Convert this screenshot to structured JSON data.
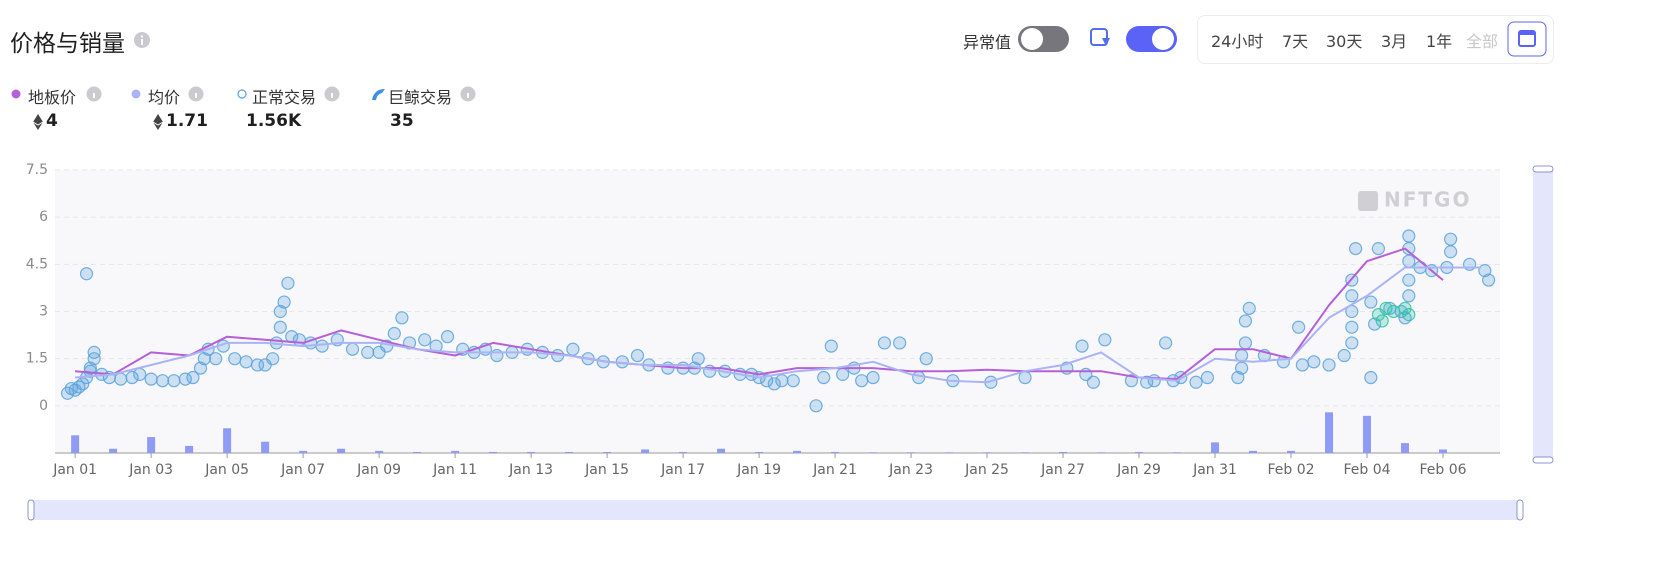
{
  "header": {
    "title": "价格与销量",
    "outlier_toggle": "异常值",
    "time_ranges": [
      "24小时",
      "7天",
      "30天",
      "3月",
      "1年",
      "全部"
    ]
  },
  "watermark": "NFTGO",
  "chart_data": {
    "type": "line",
    "xlim": [
      -0.53,
      37.5
    ],
    "xticks": [
      {
        "value": 0,
        "label": "Jan 01"
      },
      {
        "value": 2,
        "label": "Jan 03"
      },
      {
        "value": 4,
        "label": "Jan 05"
      },
      {
        "value": 6,
        "label": "Jan 07"
      },
      {
        "value": 8,
        "label": "Jan 09"
      },
      {
        "value": 10,
        "label": "Jan 11"
      },
      {
        "value": 12,
        "label": "Jan 13"
      },
      {
        "value": 14,
        "label": "Jan 15"
      },
      {
        "value": 16,
        "label": "Jan 17"
      },
      {
        "value": 18,
        "label": "Jan 19"
      },
      {
        "value": 20,
        "label": "Jan 21"
      },
      {
        "value": 22,
        "label": "Jan 23"
      },
      {
        "value": 24,
        "label": "Jan 25"
      },
      {
        "value": 26,
        "label": "Jan 27"
      },
      {
        "value": 28,
        "label": "Jan 29"
      },
      {
        "value": 30,
        "label": "Jan 31"
      },
      {
        "value": 32,
        "label": "Feb 02"
      },
      {
        "value": 34,
        "label": "Feb 04"
      },
      {
        "value": 36,
        "label": "Feb 06"
      }
    ],
    "ylim": [
      -1.5,
      7.5
    ],
    "yticks": [
      0,
      1.5,
      3,
      4.5,
      6,
      7.5
    ],
    "y2lim": [
      0,
      80
    ],
    "grid": true,
    "series": [
      {
        "name": "地板价",
        "type": "line",
        "color": "#b560d6",
        "summary": 4,
        "x": [
          0,
          1,
          2,
          3,
          4,
          5,
          6,
          7,
          8,
          9,
          10,
          11,
          12,
          13,
          14,
          15,
          16,
          17,
          18,
          19,
          20,
          21,
          22,
          23,
          24,
          25,
          26,
          27,
          28,
          29,
          30,
          31,
          32,
          33,
          34,
          35,
          36
        ],
        "values": [
          1.1,
          1.0,
          1.7,
          1.6,
          2.2,
          2.1,
          2.0,
          2.4,
          2.1,
          1.8,
          1.6,
          2.0,
          1.8,
          1.6,
          1.4,
          1.3,
          1.2,
          1.2,
          1.0,
          1.2,
          1.2,
          1.2,
          1.1,
          1.1,
          1.15,
          1.1,
          1.1,
          1.1,
          0.9,
          0.85,
          1.8,
          1.8,
          1.5,
          3.2,
          4.6,
          5.0,
          4.0
        ]
      },
      {
        "name": "均价",
        "type": "line",
        "color": "#aab3f6",
        "summary": 1.71,
        "x": [
          0,
          1,
          2,
          3,
          4,
          5,
          6,
          7,
          8,
          9,
          10,
          11,
          12,
          13,
          14,
          15,
          16,
          17,
          18,
          19,
          20,
          21,
          22,
          23,
          24,
          25,
          26,
          27,
          28,
          29,
          30,
          31,
          32,
          33,
          34,
          35,
          36,
          37
        ],
        "values": [
          0.9,
          1.0,
          1.3,
          1.6,
          2.0,
          2.0,
          1.9,
          2.0,
          2.0,
          1.8,
          1.7,
          1.7,
          1.7,
          1.6,
          1.4,
          1.3,
          1.3,
          1.1,
          0.9,
          1.1,
          1.2,
          1.4,
          1.0,
          0.8,
          0.75,
          1.1,
          1.3,
          1.7,
          0.9,
          0.8,
          1.5,
          1.4,
          1.5,
          2.8,
          3.5,
          4.4,
          4.4,
          4.4
        ]
      },
      {
        "name": "正常交易",
        "type": "scatter",
        "color": "#5aa2dc",
        "summary": "1.56K",
        "x": [
          -0.2,
          -0.1,
          0,
          0.1,
          0.2,
          0.3,
          0.4,
          0.5,
          0.5,
          0.4,
          0.3,
          0.7,
          0.9,
          1.2,
          1.5,
          1.7,
          2.0,
          2.3,
          2.6,
          2.9,
          3.1,
          3.3,
          3.4,
          3.5,
          3.7,
          3.9,
          4.2,
          4.5,
          4.8,
          5.0,
          5.2,
          5.3,
          5.4,
          5.4,
          5.5,
          5.6,
          5.7,
          5.9,
          6.2,
          6.5,
          6.9,
          7.3,
          7.7,
          8.0,
          8.2,
          8.4,
          8.6,
          8.8,
          9.2,
          9.5,
          9.8,
          10.2,
          10.5,
          10.8,
          11.1,
          11.5,
          11.9,
          12.3,
          12.7,
          13.1,
          13.5,
          13.9,
          14.4,
          14.8,
          15.1,
          15.6,
          16.0,
          16.3,
          16.4,
          16.7,
          17.1,
          17.5,
          17.8,
          18.0,
          18.2,
          18.4,
          18.6,
          18.9,
          19.5,
          19.7,
          19.9,
          20.2,
          20.5,
          20.7,
          21.0,
          21.3,
          21.7,
          22.2,
          22.4,
          23.1,
          24.1,
          25.0,
          26.1,
          26.5,
          26.6,
          26.8,
          27.1,
          27.8,
          28.2,
          28.4,
          28.7,
          28.9,
          29.1,
          29.5,
          29.8,
          30.6,
          30.7,
          30.7,
          30.8,
          30.8,
          30.9,
          31.3,
          31.8,
          32.2,
          32.3,
          32.6,
          33.0,
          33.4,
          33.6,
          33.6,
          33.6,
          33.6,
          33.6,
          33.7,
          34.1,
          34.2,
          34.1,
          34.3,
          34.6,
          34.9,
          35.0,
          35.1,
          35.1,
          35.1,
          35.1,
          35.1,
          35.4,
          35.7,
          36.1,
          36.2,
          36.2,
          36.7,
          37.1,
          37.2
        ],
        "values": [
          0.4,
          0.55,
          0.5,
          0.6,
          0.7,
          0.9,
          1.2,
          1.5,
          1.7,
          1.1,
          4.2,
          1.0,
          0.9,
          0.85,
          0.9,
          1.0,
          0.85,
          0.8,
          0.8,
          0.85,
          0.9,
          1.2,
          1.5,
          1.8,
          1.5,
          1.9,
          1.5,
          1.4,
          1.3,
          1.3,
          1.5,
          2.0,
          2.5,
          3.0,
          3.3,
          3.9,
          2.2,
          2.1,
          2.0,
          1.9,
          2.1,
          1.8,
          1.7,
          1.7,
          1.9,
          2.3,
          2.8,
          2.0,
          2.1,
          1.9,
          2.2,
          1.8,
          1.7,
          1.8,
          1.6,
          1.7,
          1.8,
          1.7,
          1.6,
          1.8,
          1.5,
          1.4,
          1.4,
          1.6,
          1.3,
          1.2,
          1.2,
          1.2,
          1.5,
          1.1,
          1.1,
          1.0,
          1.0,
          0.9,
          0.8,
          0.7,
          0.8,
          0.8,
          0,
          0.9,
          1.9,
          1.0,
          1.2,
          0.8,
          0.9,
          2.0,
          2.0,
          0.9,
          1.5,
          0.8,
          0.75,
          0.9,
          1.2,
          1.9,
          1.0,
          0.75,
          2.1,
          0.8,
          0.75,
          0.8,
          2.0,
          0.8,
          0.9,
          0.75,
          0.9,
          0.9,
          1.2,
          1.6,
          2.0,
          2.7,
          3.1,
          1.6,
          1.4,
          2.5,
          1.3,
          1.4,
          1.3,
          1.6,
          2.0,
          2.5,
          3.0,
          3.5,
          4.0,
          5.0,
          3.3,
          2.6,
          0.9,
          5.0,
          3.1,
          3.0,
          2.8,
          3.5,
          4.0,
          4.6,
          5.0,
          5.4,
          4.4,
          4.3,
          4.4,
          4.9,
          5.3,
          4.5,
          4.3,
          4.0
        ]
      },
      {
        "name": "巨鲸交易",
        "type": "scatter",
        "color": "#2fc2a6",
        "summary": 35,
        "x": [
          34.3,
          34.4,
          34.5,
          34.7,
          35.0,
          35.1
        ],
        "values": [
          2.9,
          2.7,
          3.1,
          3.0,
          3.1,
          2.9
        ]
      },
      {
        "type": "bar",
        "axis": "y2",
        "color": "#8f9bf5",
        "x": [
          0,
          1,
          2,
          3,
          4,
          5,
          6,
          7,
          8,
          9,
          10,
          11,
          12,
          13,
          14,
          15,
          16,
          17,
          18,
          19,
          20,
          21,
          22,
          23,
          24,
          25,
          26,
          27,
          28,
          29,
          30,
          31,
          32,
          33,
          34,
          35,
          36
        ],
        "values": [
          5,
          1.2,
          4.5,
          2,
          7,
          3.2,
          0.6,
          1.2,
          0.6,
          0.3,
          0.6,
          0.3,
          0.3,
          0.3,
          0.3,
          1,
          0.3,
          1.2,
          0.3,
          0.6,
          0.3,
          0.2,
          0.2,
          0.2,
          0.2,
          0.2,
          0.3,
          0.2,
          0.3,
          0.2,
          3,
          0.6,
          0.6,
          11.5,
          10.5,
          2.8,
          1
        ]
      }
    ]
  }
}
